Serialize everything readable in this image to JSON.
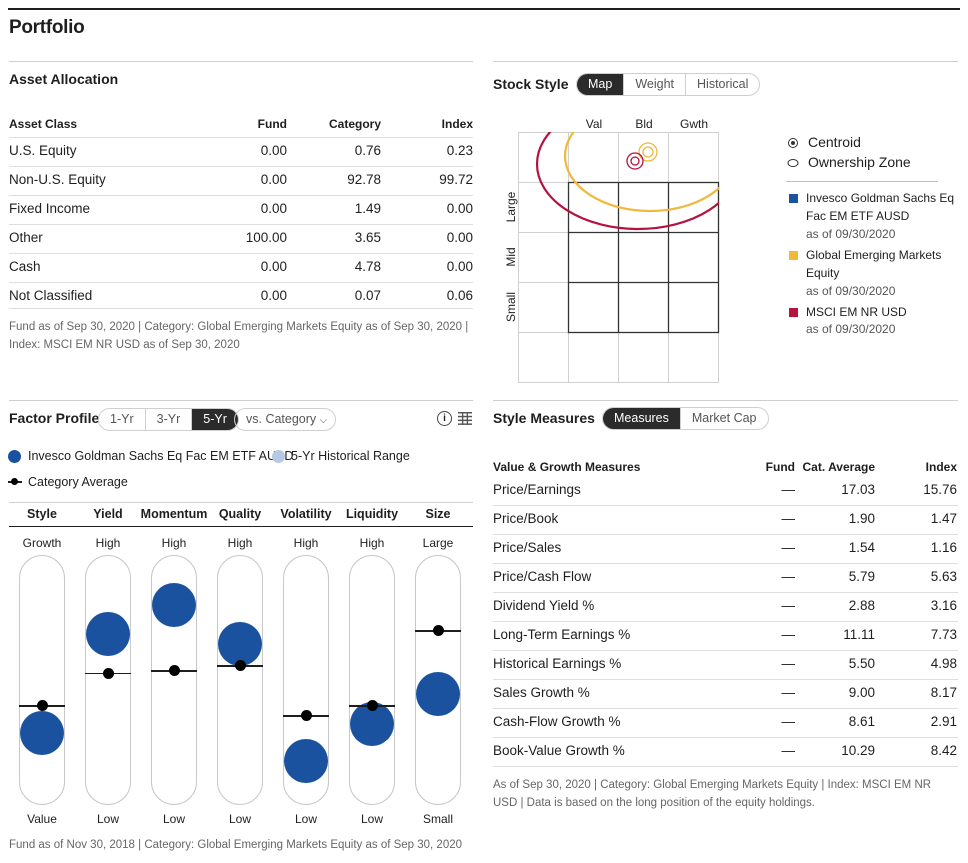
{
  "page": {
    "title": "Portfolio"
  },
  "asset_allocation": {
    "title": "Asset Allocation",
    "columns": [
      "Asset Class",
      "Fund",
      "Category",
      "Index"
    ],
    "rows": [
      [
        "U.S. Equity",
        "0.00",
        "0.76",
        "0.23"
      ],
      [
        "Non-U.S. Equity",
        "0.00",
        "92.78",
        "99.72"
      ],
      [
        "Fixed Income",
        "0.00",
        "1.49",
        "0.00"
      ],
      [
        "Other",
        "100.00",
        "3.65",
        "0.00"
      ],
      [
        "Cash",
        "0.00",
        "4.78",
        "0.00"
      ],
      [
        "Not Classified",
        "0.00",
        "0.07",
        "0.06"
      ]
    ],
    "note": "Fund as of Sep 30, 2020 | Category: Global Emerging Markets Equity as of Sep 30, 2020 | Index: MSCI EM NR USD as of Sep 30, 2020"
  },
  "stock_style": {
    "title": "Stock Style",
    "tabs": [
      "Map",
      "Weight",
      "Historical"
    ],
    "active_tab": "Map",
    "col_labels": [
      "Val",
      "Bld",
      "Gwth"
    ],
    "row_labels": [
      "Large",
      "Mid",
      "Small"
    ],
    "legend_centroid": "Centroid",
    "legend_zone": "Ownership Zone",
    "series": [
      {
        "name": "Invesco Goldman Sachs Eq Fac EM ETF AUSD",
        "date": "as of 09/30/2020",
        "color": "#1a52a0"
      },
      {
        "name": "Global Emerging Markets Equity",
        "date": "as of 09/30/2020",
        "color": "#f0b83c"
      },
      {
        "name": "MSCI EM NR USD",
        "date": "as of 09/30/2020",
        "color": "#b5123e"
      }
    ]
  },
  "factor_profile": {
    "title": "Factor Profile",
    "periods": [
      "1-Yr",
      "3-Yr",
      "5-Yr"
    ],
    "active_period": "5-Yr",
    "compare_label": "vs. Category",
    "legend_fund": "Invesco Goldman Sachs Eq Fac EM ETF AUSD",
    "legend_range": "5-Yr Historical Range",
    "legend_avg": "Category Average",
    "fund_color": "#1a52a0",
    "range_color": "#b7c9e2",
    "factors": [
      {
        "name": "Style",
        "top": "Growth",
        "bottom": "Value",
        "fund_level": 0.24,
        "category_level": 0.4
      },
      {
        "name": "Yield",
        "top": "High",
        "bottom": "Low",
        "fund_level": 0.73,
        "category_level": 0.53
      },
      {
        "name": "Momentum",
        "top": "High",
        "bottom": "Low",
        "fund_level": 0.87,
        "category_level": 0.54
      },
      {
        "name": "Quality",
        "top": "High",
        "bottom": "Low",
        "fund_level": 0.68,
        "category_level": 0.56
      },
      {
        "name": "Volatility",
        "top": "High",
        "bottom": "Low",
        "fund_level": 0.1,
        "category_level": 0.36
      },
      {
        "name": "Liquidity",
        "top": "High",
        "bottom": "Low",
        "fund_level": 0.28,
        "category_level": 0.4
      },
      {
        "name": "Size",
        "top": "Large",
        "bottom": "Small",
        "fund_level": 0.43,
        "category_level": 0.7
      }
    ],
    "note": "Fund as of Nov 30, 2018 | Category: Global Emerging Markets Equity as of Sep 30, 2020"
  },
  "style_measures": {
    "title": "Style Measures",
    "tabs": [
      "Measures",
      "Market Cap"
    ],
    "active_tab": "Measures",
    "columns": [
      "Value & Growth Measures",
      "Fund",
      "Cat. Average",
      "Index"
    ],
    "rows": [
      [
        "Price/Earnings",
        "—",
        "17.03",
        "15.76"
      ],
      [
        "Price/Book",
        "—",
        "1.90",
        "1.47"
      ],
      [
        "Price/Sales",
        "—",
        "1.54",
        "1.16"
      ],
      [
        "Price/Cash Flow",
        "—",
        "5.79",
        "5.63"
      ],
      [
        "Dividend Yield %",
        "—",
        "2.88",
        "3.16"
      ],
      [
        "Long-Term Earnings %",
        "—",
        "11.11",
        "7.73"
      ],
      [
        "Historical Earnings %",
        "—",
        "5.50",
        "4.98"
      ],
      [
        "Sales Growth %",
        "—",
        "9.00",
        "8.17"
      ],
      [
        "Cash-Flow Growth %",
        "—",
        "8.61",
        "2.91"
      ],
      [
        "Book-Value Growth %",
        "—",
        "10.29",
        "8.42"
      ]
    ],
    "note": "As of Sep 30, 2020 | Category: Global Emerging Markets Equity | Index: MSCI EM NR USD | Data is based on the long position of the equity holdings."
  }
}
